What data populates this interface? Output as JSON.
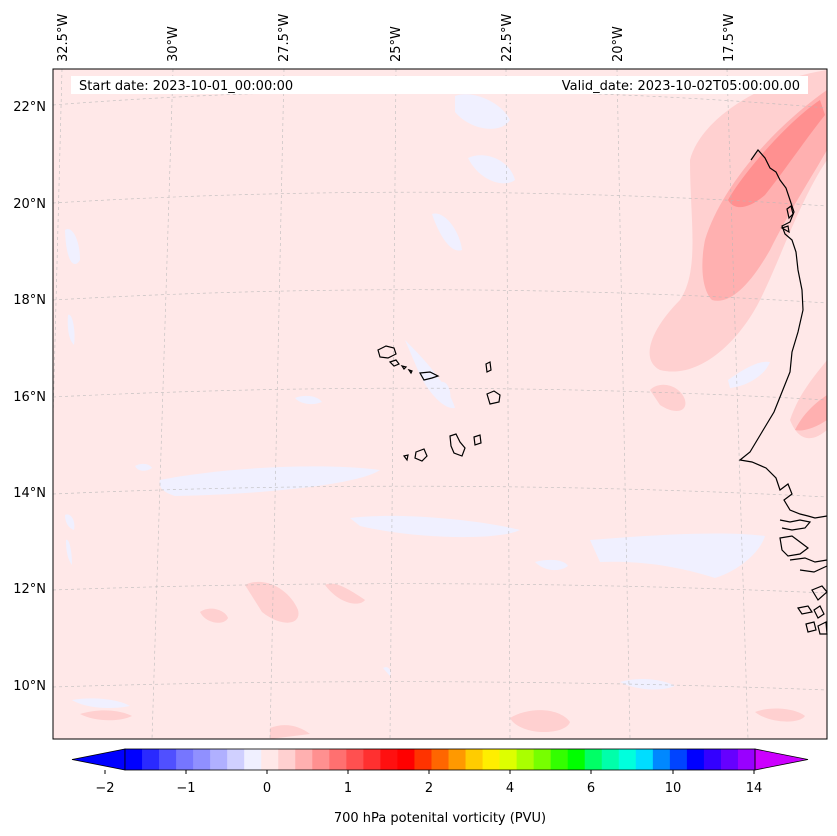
{
  "start_date": "Start date: 2023-10-01_00:00:00",
  "valid_date": "Valid_date: 2023-10-02T05:00:00.00",
  "colorbar_label": "700 hPa potenital vorticity (PVU)",
  "longitude_labels": [
    "32.5°W",
    "30°W",
    "27.5°W",
    "25°W",
    "22.5°W",
    "20°W",
    "17.5°W"
  ],
  "latitude_labels": [
    "22°N",
    "20°N",
    "18°N",
    "16°N",
    "14°N",
    "12°N",
    "10°N"
  ],
  "colorbar_ticks": [
    "−2",
    "−1",
    "0",
    "1",
    "2",
    "4",
    "6",
    "10",
    "14"
  ],
  "colorbar_colors": [
    "#0000ff",
    "#2a2aff",
    "#5050ff",
    "#7676ff",
    "#9090ff",
    "#b0b0ff",
    "#d0d0ff",
    "#f0f0ff",
    "#ffe8e8",
    "#ffd0d0",
    "#ffb0b0",
    "#ff9090",
    "#ff7070",
    "#ff5050",
    "#ff3030",
    "#ff1010",
    "#ff0000",
    "#ff3300",
    "#ff6600",
    "#ff9900",
    "#ffcc00",
    "#ffee00",
    "#ddff00",
    "#aaff00",
    "#77ff00",
    "#33ff00",
    "#00ff00",
    "#00ff66",
    "#00ffaa",
    "#00ffdd",
    "#00ddff",
    "#0088ff",
    "#0044ff",
    "#0000ff",
    "#3300ff",
    "#6600ff",
    "#9900ff"
  ],
  "colorbar_under_color": "#0000ff",
  "colorbar_over_color": "#cc00ff",
  "background_field_color": "#ffe8e8"
}
